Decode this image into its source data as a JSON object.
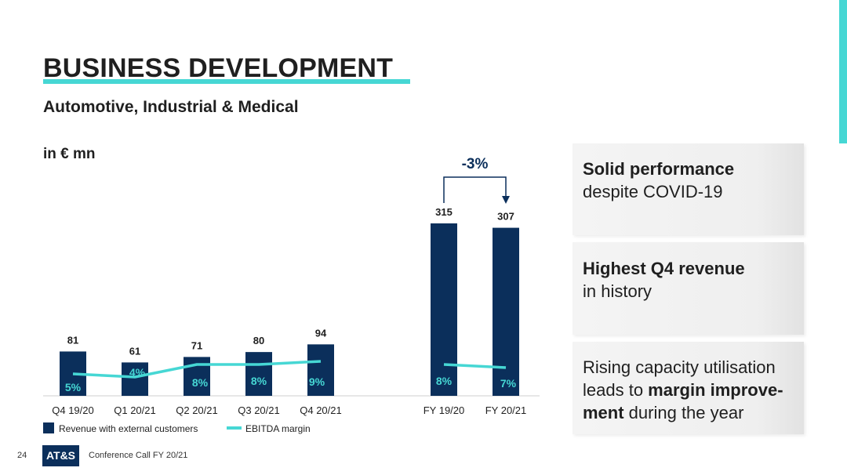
{
  "slide": {
    "title": "BUSINESS DEVELOPMENT",
    "subtitle": "Automotive, Industrial & Medical",
    "unit": "in € mn",
    "accent_color": "#46d7d4",
    "bar_color": "#0b2f5b"
  },
  "chart_data": {
    "type": "bar",
    "categories": [
      "Q4 19/20",
      "Q1 20/21",
      "Q2 20/21",
      "Q3 20/21",
      "Q4 20/21",
      "FY 19/20",
      "FY 20/21"
    ],
    "series": [
      {
        "name": "Revenue with external customers",
        "type": "bar",
        "color": "#0b2f5b",
        "values": [
          81,
          61,
          71,
          80,
          94,
          315,
          307
        ]
      },
      {
        "name": "EBITDA margin",
        "type": "line",
        "color": "#46d7d4",
        "values": [
          5,
          4,
          8,
          8,
          9,
          8,
          7
        ],
        "labels": [
          "5%",
          "4%",
          "8%",
          "8%",
          "9%",
          "8%",
          "7%"
        ]
      }
    ],
    "annotation": {
      "text": "-3%",
      "from": "FY 19/20",
      "to": "FY 20/21"
    },
    "legend": [
      "Revenue with external customers",
      "EBITDA margin"
    ],
    "ylim": [
      0,
      330
    ]
  },
  "panels": [
    {
      "bold": "Solid performance",
      "text": "despite COVID-19"
    },
    {
      "bold": "Highest Q4 revenue",
      "text": "in history"
    },
    {
      "l1": "Rising capacity utilisation",
      "l2a": "leads to ",
      "l2b": "margin improve-",
      "l3a": "ment",
      "l3b": " during the year"
    }
  ],
  "footer": {
    "page": "24",
    "logo": "AT&S",
    "text": "Conference Call FY 20/21"
  }
}
